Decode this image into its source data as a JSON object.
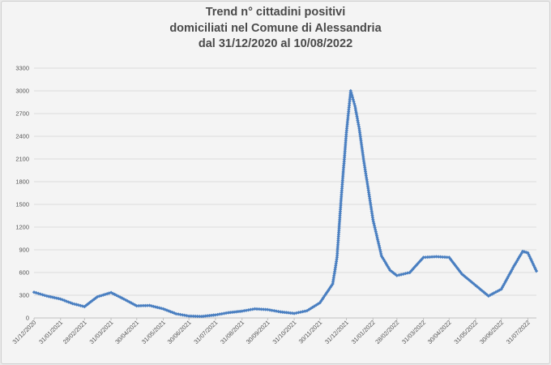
{
  "chart_data": {
    "type": "line",
    "title_lines": [
      "Trend n° cittadini positivi",
      "domiciliati nel Comune di Alessandria",
      "dal 31/12/2020 al 10/08/2022"
    ],
    "xlabel": "",
    "ylabel": "",
    "ylim": [
      0,
      3300
    ],
    "y_ticks": [
      "0",
      "300",
      "600",
      "900",
      "1200",
      "1500",
      "1800",
      "2100",
      "2400",
      "2700",
      "3000",
      "3300"
    ],
    "x_tick_labels": [
      "31/12/2020",
      "31/01/2021",
      "28/02/2021",
      "31/03/2021",
      "30/04/2021",
      "31/05/2021",
      "30/06/2021",
      "31/07/2021",
      "31/08/2021",
      "30/09/2021",
      "31/10/2021",
      "30/11/2021",
      "31/12/2021",
      "31/01/2022",
      "28/02/2022",
      "31/03/2022",
      "30/04/2022",
      "31/05/2022",
      "30/06/2022",
      "31/07/2022"
    ],
    "x_range": [
      "31/12/2020",
      "10/08/2022"
    ],
    "grid": true,
    "legend": "none",
    "series_color": "#4a7fc1",
    "series": [
      {
        "values": [
          [
            "31/12/2020",
            340
          ],
          [
            "15/01/2021",
            290
          ],
          [
            "31/01/2021",
            250
          ],
          [
            "14/02/2021",
            190
          ],
          [
            "28/02/2021",
            150
          ],
          [
            "15/03/2021",
            280
          ],
          [
            "31/03/2021",
            335
          ],
          [
            "15/04/2021",
            250
          ],
          [
            "30/04/2021",
            160
          ],
          [
            "15/05/2021",
            165
          ],
          [
            "31/05/2021",
            120
          ],
          [
            "15/06/2021",
            55
          ],
          [
            "30/06/2021",
            25
          ],
          [
            "15/07/2021",
            20
          ],
          [
            "31/07/2021",
            40
          ],
          [
            "15/08/2021",
            70
          ],
          [
            "31/08/2021",
            90
          ],
          [
            "15/09/2021",
            120
          ],
          [
            "30/09/2021",
            110
          ],
          [
            "15/10/2021",
            80
          ],
          [
            "31/10/2021",
            60
          ],
          [
            "15/11/2021",
            95
          ],
          [
            "30/11/2021",
            200
          ],
          [
            "15/12/2021",
            450
          ],
          [
            "20/12/2021",
            800
          ],
          [
            "25/12/2021",
            1600
          ],
          [
            "31/12/2021",
            2450
          ],
          [
            "05/01/2022",
            3000
          ],
          [
            "10/01/2022",
            2800
          ],
          [
            "15/01/2022",
            2500
          ],
          [
            "20/01/2022",
            2100
          ],
          [
            "31/01/2022",
            1300
          ],
          [
            "10/02/2022",
            820
          ],
          [
            "20/02/2022",
            630
          ],
          [
            "28/02/2022",
            560
          ],
          [
            "15/03/2022",
            600
          ],
          [
            "31/03/2022",
            800
          ],
          [
            "15/04/2022",
            810
          ],
          [
            "30/04/2022",
            800
          ],
          [
            "15/05/2022",
            580
          ],
          [
            "31/05/2022",
            430
          ],
          [
            "15/06/2022",
            290
          ],
          [
            "30/06/2022",
            380
          ],
          [
            "15/07/2022",
            690
          ],
          [
            "25/07/2022",
            880
          ],
          [
            "31/07/2022",
            860
          ],
          [
            "10/08/2022",
            620
          ]
        ]
      }
    ]
  }
}
